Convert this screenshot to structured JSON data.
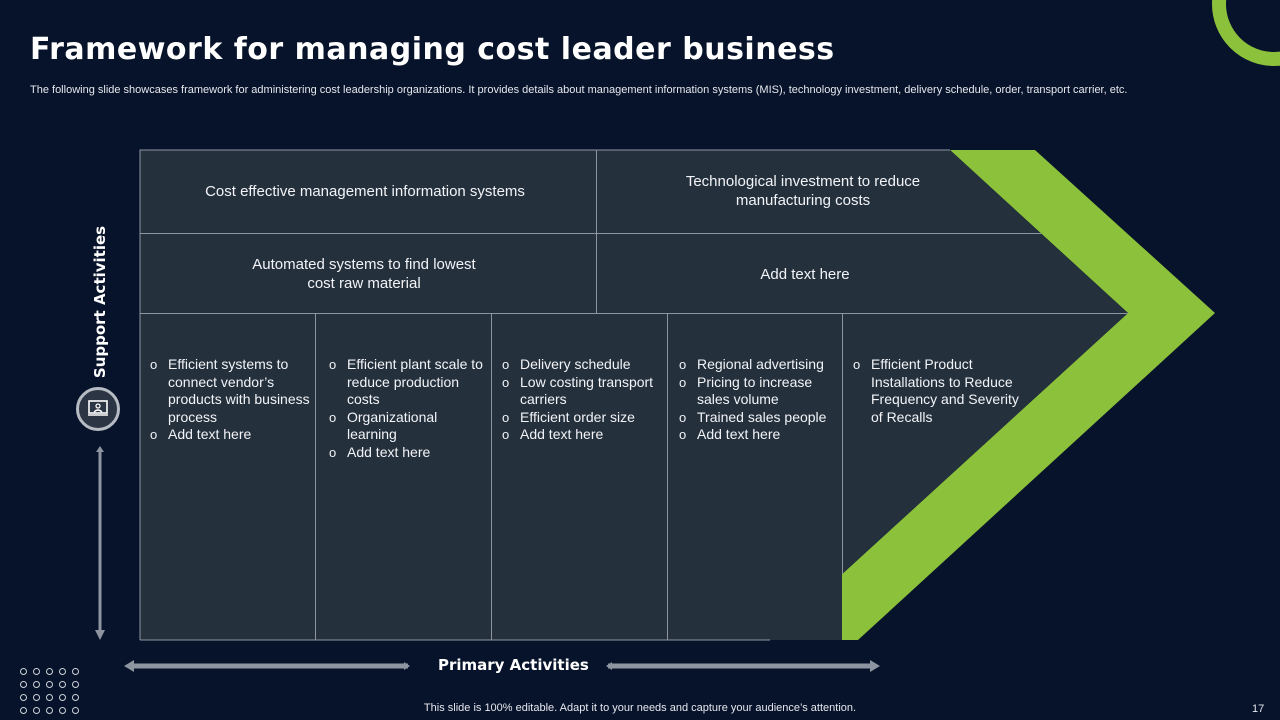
{
  "slide": {
    "title": "Framework for managing cost leader business",
    "subtitle": "The following slide showcases framework for administering cost leadership organizations. It provides details about management information systems (MIS), technology investment, delivery schedule, order, transport carrier, etc.",
    "footer": "This slide is 100% editable. Adapt it to your needs and capture your audience’s attention.",
    "page_number": "17"
  },
  "labels": {
    "support": "Support Activities",
    "primary": "Primary Activities"
  },
  "support_rows": [
    [
      "Cost effective management information systems",
      "Technological investment to reduce manufacturing costs"
    ],
    [
      "Automated systems to find lowest cost raw material",
      "Add text here"
    ]
  ],
  "primary_columns": [
    [
      "Efficient systems to connect vendor’s products with business process",
      "Add text here"
    ],
    [
      "Efficient plant scale to reduce production costs",
      "Organizational learning",
      "Add text here"
    ],
    [
      "Delivery schedule",
      "Low costing transport carriers",
      "Efficient order size",
      "Add text here"
    ],
    [
      "Regional advertising",
      "Pricing to increase sales volume",
      "Trained sales people",
      "Add text here"
    ],
    [
      "Efficient Product Installations to Reduce Frequency and Severity of Recalls"
    ]
  ],
  "colors": {
    "background": "#07132a",
    "panel": "#25303d",
    "accent": "#8cc13c"
  },
  "icons": {
    "support": "presentation-icon"
  }
}
